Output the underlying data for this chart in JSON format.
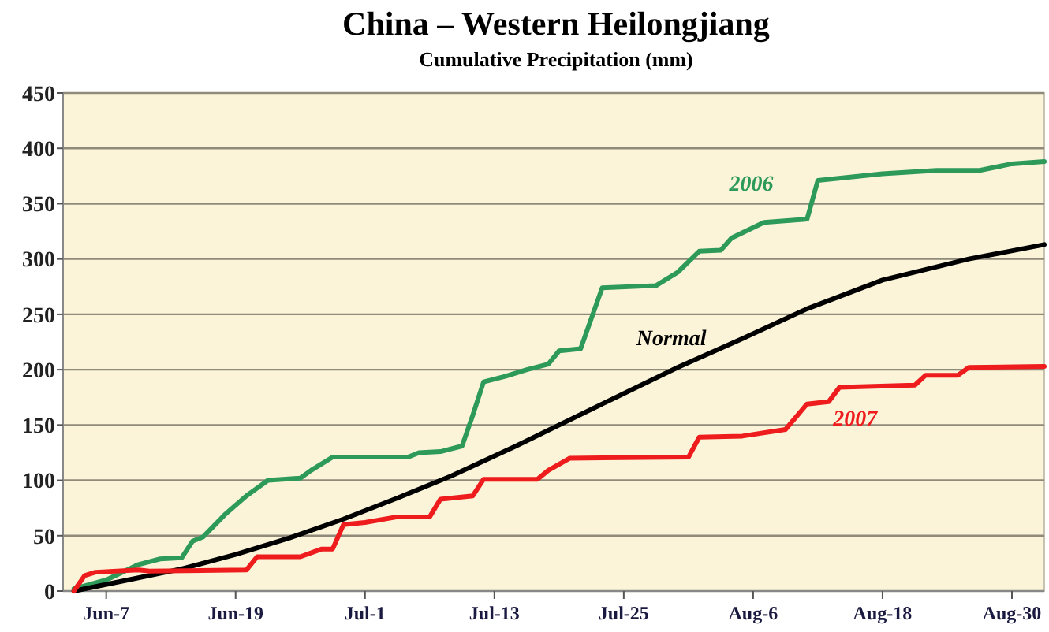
{
  "chart_data": {
    "type": "line",
    "title": "China – Western Heilongjiang",
    "subtitle": "Cumulative Precipitation (mm)",
    "xlim": [
      "--06-03",
      "--09-02"
    ],
    "xticks": [
      {
        "value": "--06-07",
        "label": "Jun-7"
      },
      {
        "value": "--06-19",
        "label": "Jun-19"
      },
      {
        "value": "--07-01",
        "label": "Jul-1"
      },
      {
        "value": "--07-13",
        "label": "Jul-13"
      },
      {
        "value": "--07-25",
        "label": "Jul-25"
      },
      {
        "value": "--08-06",
        "label": "Aug-6"
      },
      {
        "value": "--08-18",
        "label": "Aug-18"
      },
      {
        "value": "--08-30",
        "label": "Aug-30"
      }
    ],
    "ylim": [
      0,
      450
    ],
    "yticks": [
      0,
      50,
      100,
      150,
      200,
      250,
      300,
      350,
      400,
      450
    ],
    "grid": "y",
    "marker": "none",
    "line_style": "solid",
    "series": [
      {
        "name": "2006",
        "color": "#2e9a5a",
        "x": [
          "--06-04",
          "--06-07",
          "--06-10",
          "--06-12",
          "--06-14",
          "--06-15",
          "--06-16",
          "--06-18",
          "--06-20",
          "--06-21",
          "--06-22",
          "--06-25",
          "--06-26",
          "--06-28",
          "--07-01",
          "--07-05",
          "--07-06",
          "--07-08",
          "--07-10",
          "--07-11",
          "--07-12",
          "--07-14",
          "--07-16",
          "--07-18",
          "--07-19",
          "--07-21",
          "--07-23",
          "--07-28",
          "--07-30",
          "--08-01",
          "--08-03",
          "--08-04",
          "--08-07",
          "--08-11",
          "--08-12",
          "--08-15",
          "--08-18",
          "--08-23",
          "--08-27",
          "--08-30",
          "--09-02"
        ],
        "values": [
          2,
          10,
          24,
          29,
          30,
          45,
          49,
          69,
          86,
          93,
          100,
          102,
          109,
          121,
          121,
          121,
          125,
          126,
          131,
          159,
          189,
          194,
          200,
          205,
          217,
          219,
          274,
          276,
          288,
          307,
          308,
          319,
          333,
          336,
          371,
          374,
          377,
          380,
          380,
          386,
          388
        ]
      },
      {
        "name": "Normal",
        "color": "#000000",
        "x": [
          "--06-04",
          "--06-09",
          "--06-14",
          "--06-19",
          "--06-24",
          "--06-29",
          "--07-04",
          "--07-09",
          "--07-15",
          "--07-23",
          "--07-30",
          "--08-05",
          "--08-11",
          "--08-18",
          "--08-26",
          "--09-02"
        ],
        "values": [
          0,
          10,
          20,
          33,
          48,
          65,
          84,
          104,
          131,
          169,
          202,
          228,
          255,
          281,
          300,
          313
        ]
      },
      {
        "name": "2007",
        "color": "#ee1c1c",
        "x": [
          "--06-04",
          "--06-05",
          "--06-06",
          "--06-10",
          "--06-11",
          "--06-20",
          "--06-21",
          "--06-25",
          "--06-27",
          "--06-28",
          "--06-29",
          "--07-01",
          "--07-04",
          "--07-07",
          "--07-08",
          "--07-11",
          "--07-12",
          "--07-17",
          "--07-18",
          "--07-20",
          "--07-31",
          "--08-01",
          "--08-05",
          "--08-09",
          "--08-11",
          "--08-13",
          "--08-14",
          "--08-21",
          "--08-22",
          "--08-25",
          "--08-26",
          "--09-02"
        ],
        "values": [
          0,
          14,
          17,
          19,
          18,
          19,
          31,
          31,
          38,
          38,
          60,
          62,
          67,
          67,
          83,
          86,
          101,
          101,
          109,
          120,
          121,
          139,
          140,
          146,
          169,
          171,
          184,
          186,
          195,
          195,
          202,
          203
        ]
      }
    ]
  }
}
